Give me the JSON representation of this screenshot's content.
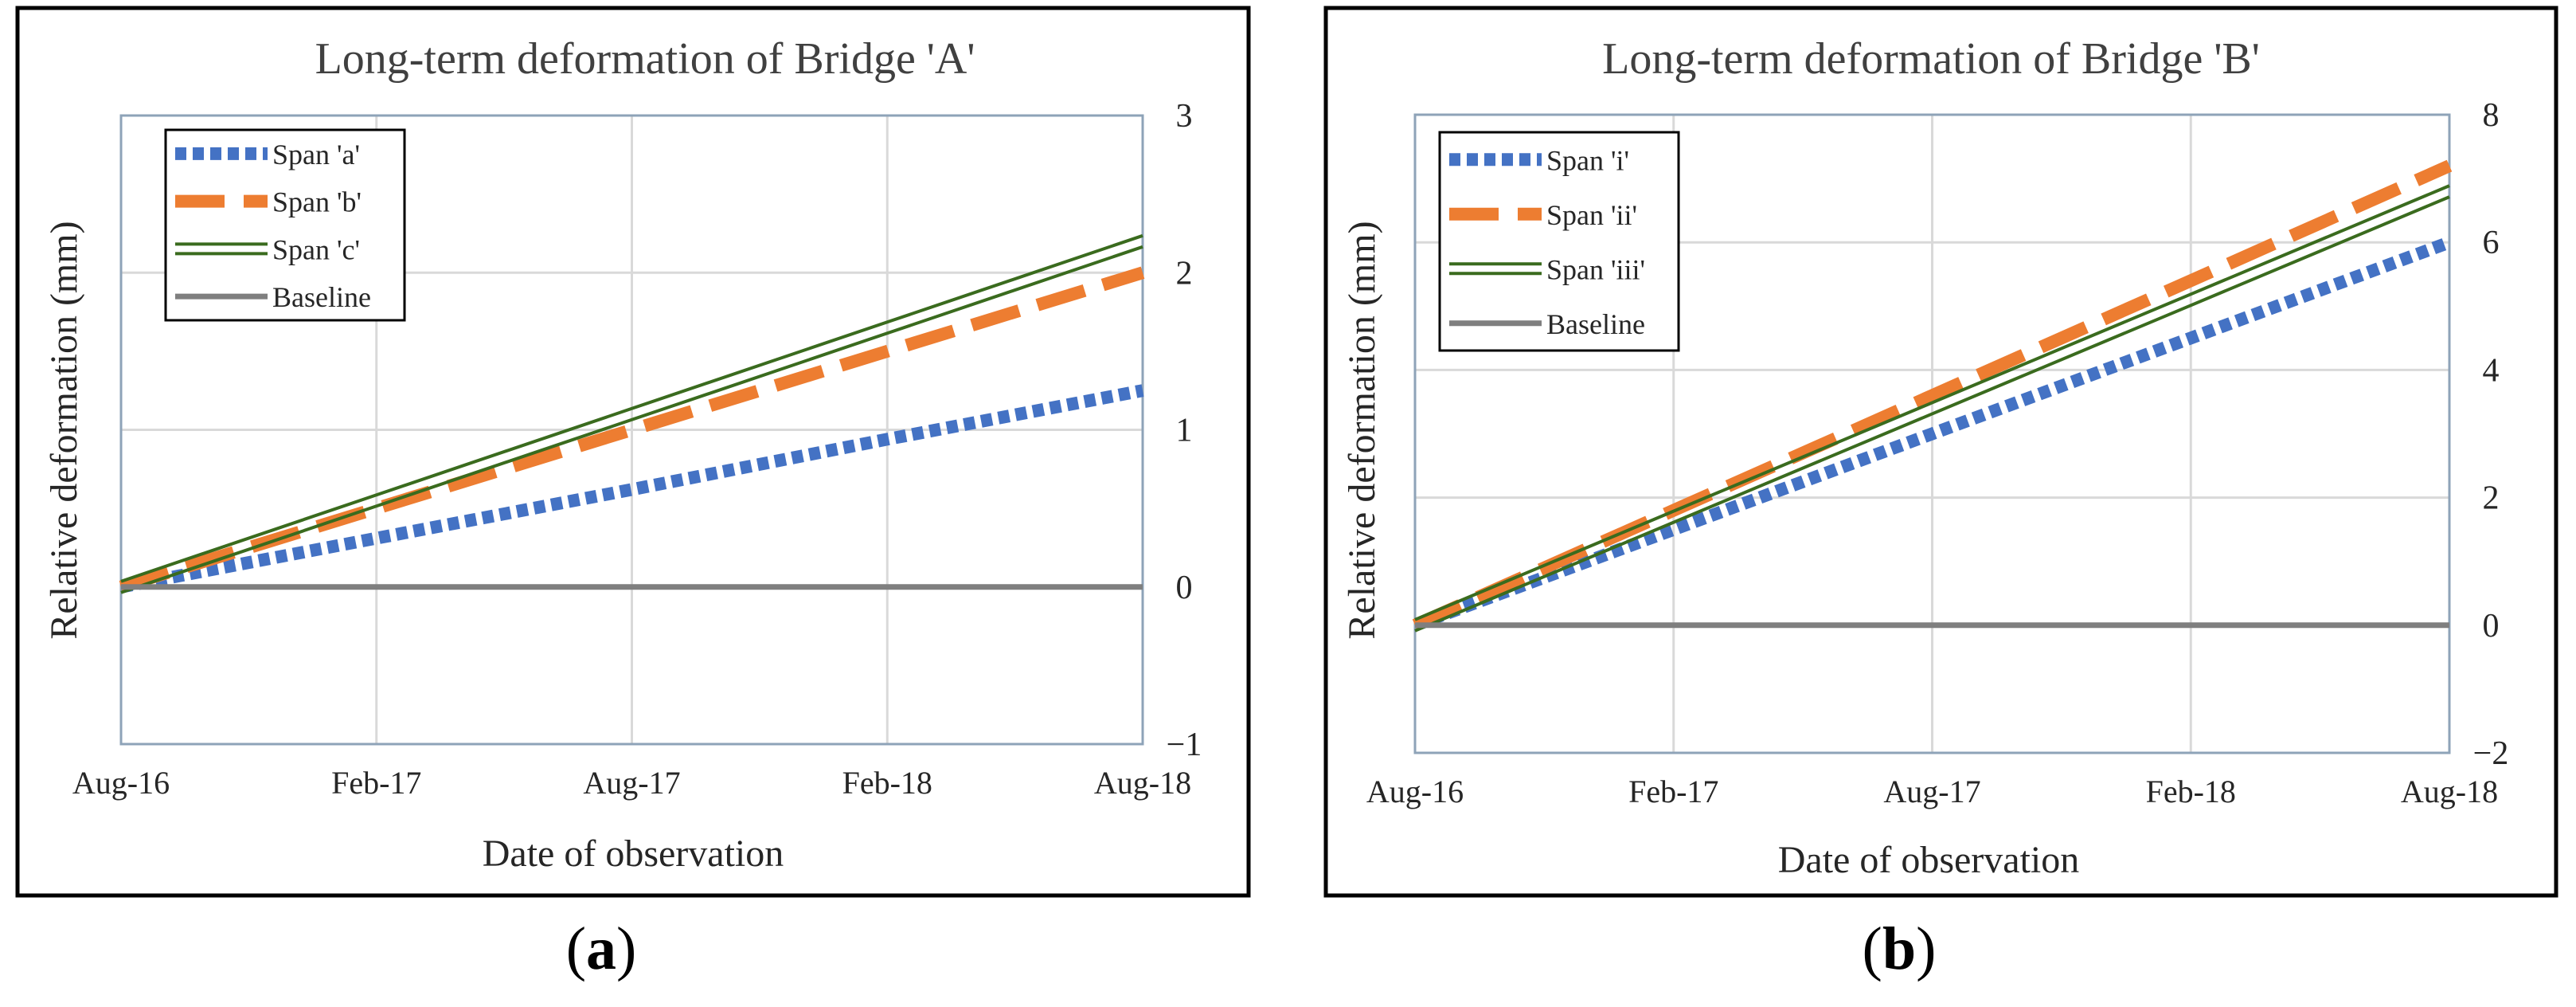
{
  "figure": {
    "panels": [
      {
        "label_open": "(",
        "label_letter": "a",
        "label_close": ")"
      },
      {
        "label_open": "(",
        "label_letter": "b",
        "label_close": ")"
      }
    ]
  },
  "colors": {
    "span1": "#4472C4",
    "span2": "#ED7D31",
    "span3": "#3A6B1E",
    "baseline": "#7F7F7F",
    "grid": "#D9D9D9",
    "plot_border": "#8EA3B8",
    "frame": "#000000"
  },
  "chart_data": [
    {
      "type": "line",
      "title": "Long-term deformation of Bridge 'A'",
      "xlabel": "Date of observation",
      "ylabel": "Relative deformation (mm)",
      "ylim": [
        -1,
        3
      ],
      "yticks": [
        -1,
        0,
        1,
        2,
        3
      ],
      "ytick_labels": [
        "−1",
        "0",
        "1",
        "2",
        "3"
      ],
      "categories": [
        "Aug-16",
        "Feb-17",
        "Aug-17",
        "Feb-18",
        "Aug-18"
      ],
      "grid": true,
      "legend_position": "top-left",
      "series": [
        {
          "name": "Span 'a'",
          "style": "dotted",
          "values": [
            0,
            0.31,
            0.62,
            0.94,
            1.25
          ]
        },
        {
          "name": "Span 'b'",
          "style": "dashed",
          "values": [
            0,
            0.5,
            1.0,
            1.5,
            2.0
          ]
        },
        {
          "name": "Span 'c'",
          "style": "double",
          "values": [
            0,
            0.55,
            1.1,
            1.65,
            2.2
          ]
        },
        {
          "name": "Baseline",
          "style": "solid",
          "values": [
            0,
            0,
            0,
            0,
            0
          ]
        }
      ]
    },
    {
      "type": "line",
      "title": "Long-term deformation of Bridge 'B'",
      "xlabel": "Date of observation",
      "ylabel": "Relative deformation (mm)",
      "ylim": [
        -2,
        8
      ],
      "yticks": [
        -2,
        0,
        2,
        4,
        6,
        8
      ],
      "ytick_labels": [
        "−2",
        "0",
        "2",
        "4",
        "6",
        "8"
      ],
      "categories": [
        "Aug-16",
        "Feb-17",
        "Aug-17",
        "Feb-18",
        "Aug-18"
      ],
      "grid": true,
      "legend_position": "top-left",
      "series": [
        {
          "name": "Span 'i'",
          "style": "dotted",
          "values": [
            0,
            1.5,
            3.0,
            4.5,
            6.0
          ]
        },
        {
          "name": "Span 'ii'",
          "style": "dashed",
          "values": [
            0,
            1.8,
            3.6,
            5.4,
            7.2
          ]
        },
        {
          "name": "Span 'iii'",
          "style": "double",
          "values": [
            0,
            1.7,
            3.4,
            5.1,
            6.8
          ]
        },
        {
          "name": "Baseline",
          "style": "solid",
          "values": [
            0,
            0,
            0,
            0,
            0
          ]
        }
      ]
    }
  ]
}
